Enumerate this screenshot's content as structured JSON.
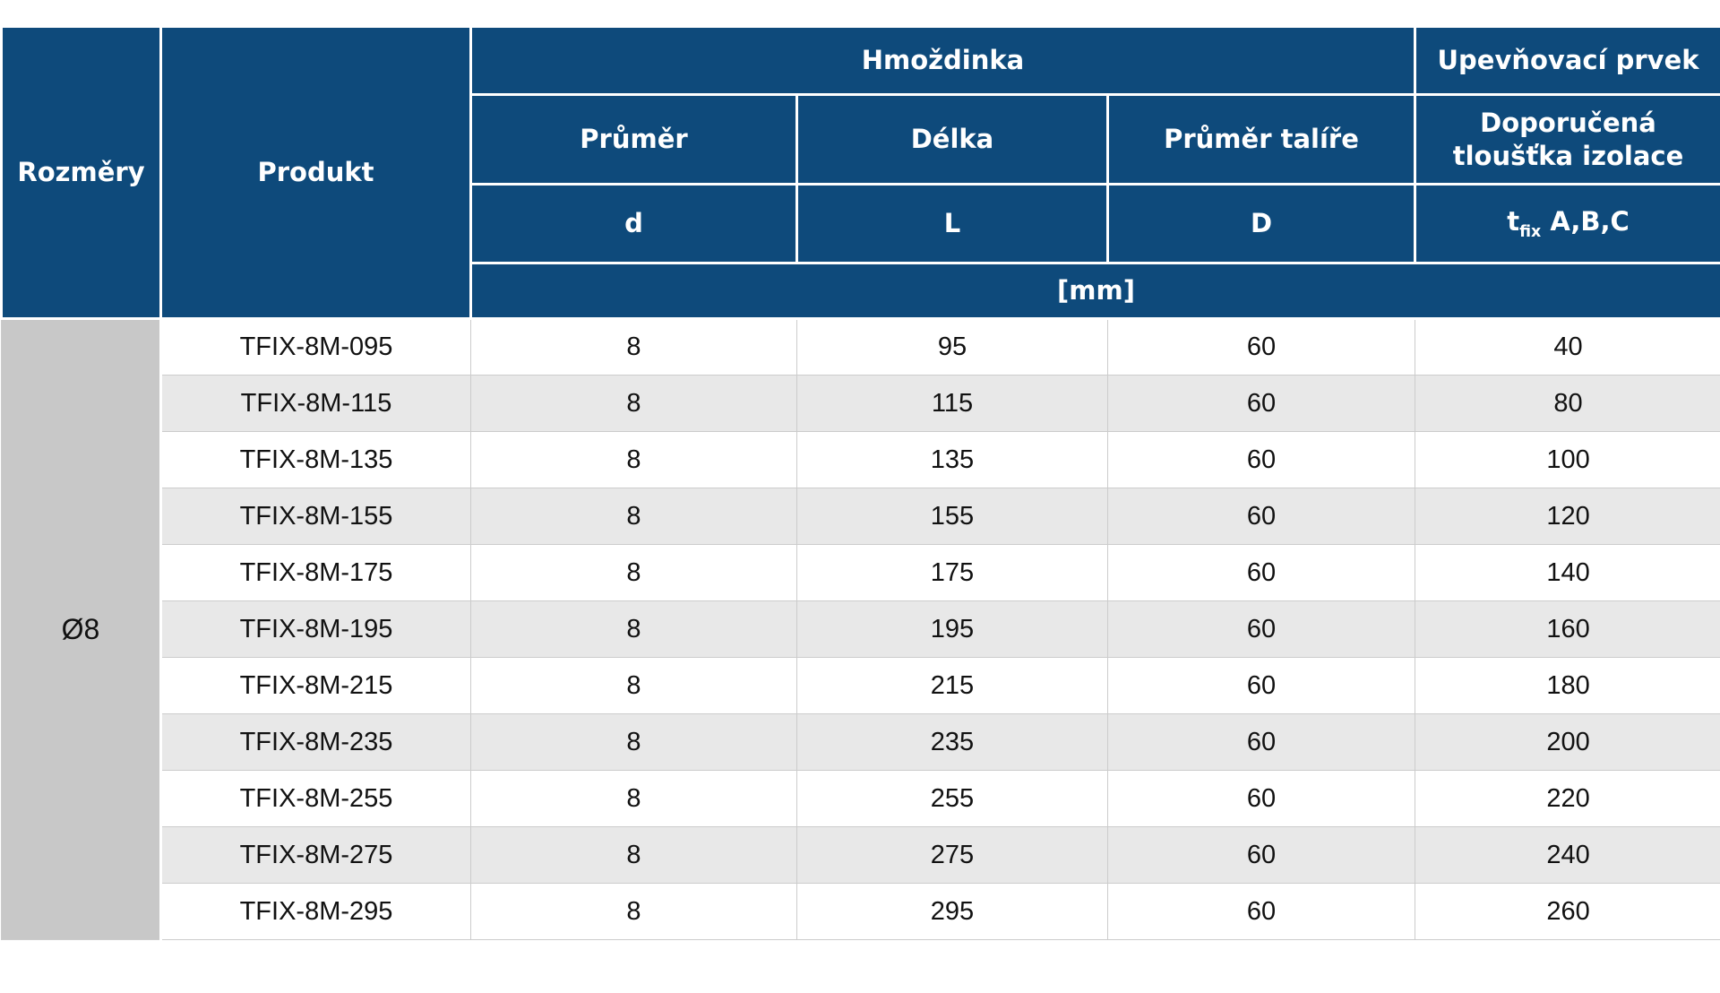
{
  "page": {
    "background": "#ffffff"
  },
  "table": {
    "colors": {
      "header_bg": "#0e4a7b",
      "header_text": "#ffffff",
      "group_column_bg": "#c8c8c8",
      "row_bg": "#ffffff",
      "row_alt_bg": "#e8e8e8",
      "grid_line": "#cccccc",
      "data_text": "#111111"
    },
    "header": {
      "rozmery": "Rozměry",
      "produkt": "Produkt",
      "hmozdinka": "Hmoždinka",
      "upevnovaci_prvek": "Upevňovací prvek",
      "prumer": "Průměr",
      "delka": "Délka",
      "prumer_talire": "Průměr talíře",
      "doporucena_tloustka": "Doporučená tloušťka izolace",
      "sym_d": "d",
      "sym_L": "L",
      "sym_D": "D",
      "tfix_base": "t",
      "tfix_sub": "fix",
      "tfix_suffix": "A,B,C",
      "unit": "[mm]"
    },
    "group_label": "Ø8",
    "column_keys": [
      "product",
      "d",
      "L",
      "D",
      "tfix"
    ],
    "rows": [
      {
        "product": "TFIX-8M-095",
        "d": "8",
        "L": "95",
        "D": "60",
        "tfix": "40"
      },
      {
        "product": "TFIX-8M-115",
        "d": "8",
        "L": "115",
        "D": "60",
        "tfix": "80"
      },
      {
        "product": "TFIX-8M-135",
        "d": "8",
        "L": "135",
        "D": "60",
        "tfix": "100"
      },
      {
        "product": "TFIX-8M-155",
        "d": "8",
        "L": "155",
        "D": "60",
        "tfix": "120"
      },
      {
        "product": "TFIX-8M-175",
        "d": "8",
        "L": "175",
        "D": "60",
        "tfix": "140"
      },
      {
        "product": "TFIX-8M-195",
        "d": "8",
        "L": "195",
        "D": "60",
        "tfix": "160"
      },
      {
        "product": "TFIX-8M-215",
        "d": "8",
        "L": "215",
        "D": "60",
        "tfix": "180"
      },
      {
        "product": "TFIX-8M-235",
        "d": "8",
        "L": "235",
        "D": "60",
        "tfix": "200"
      },
      {
        "product": "TFIX-8M-255",
        "d": "8",
        "L": "255",
        "D": "60",
        "tfix": "220"
      },
      {
        "product": "TFIX-8M-275",
        "d": "8",
        "L": "275",
        "D": "60",
        "tfix": "240"
      },
      {
        "product": "TFIX-8M-295",
        "d": "8",
        "L": "295",
        "D": "60",
        "tfix": "260"
      }
    ]
  }
}
